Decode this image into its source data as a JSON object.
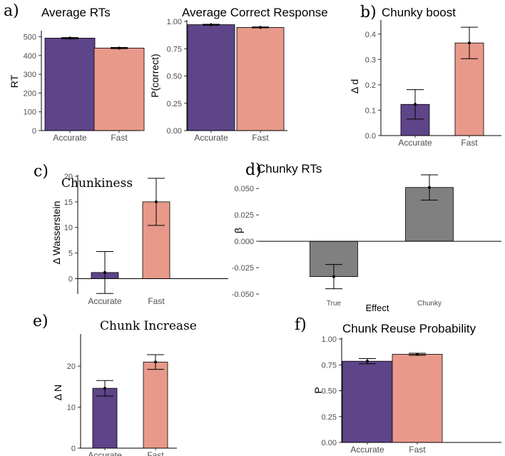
{
  "colors": {
    "accurate": "#5e4489",
    "fast": "#e8998a",
    "grey": "#808080",
    "axis": "#000000",
    "err": "#000000"
  },
  "chart_data": [
    {
      "id": "a1",
      "type": "bar",
      "panel_label": "a)",
      "title": "Average RTs",
      "categories": [
        "Accurate",
        "Fast"
      ],
      "values": [
        493,
        440
      ],
      "errors": [
        3,
        3
      ],
      "ylabel": "RT",
      "xlabel": "",
      "ylim": [
        0,
        525
      ],
      "yticks": [
        0,
        100,
        200,
        300,
        400,
        500
      ],
      "ytick_labels": [
        "0",
        "100",
        "200",
        "300",
        "400",
        "500"
      ],
      "colors": [
        "#5e4489",
        "#e8998a"
      ]
    },
    {
      "id": "a2",
      "type": "bar",
      "panel_label": "",
      "title": "Average Correct Response",
      "categories": [
        "Accurate",
        "Fast"
      ],
      "values": [
        0.97,
        0.945
      ],
      "errors": [
        0.004,
        0.004
      ],
      "ylabel": "P(correct)",
      "xlabel": "",
      "ylim": [
        0,
        1.0
      ],
      "yticks": [
        0,
        0.25,
        0.5,
        0.75,
        1.0
      ],
      "ytick_labels": [
        "0.00",
        "0.25",
        "0.50",
        "0.75",
        "1.00"
      ],
      "colors": [
        "#5e4489",
        "#e8998a"
      ]
    },
    {
      "id": "b",
      "type": "bar",
      "panel_label": "b)",
      "title": "Chunky boost",
      "categories": [
        "Accurate",
        "Fast"
      ],
      "values": [
        0.123,
        0.365
      ],
      "errors": [
        0.058,
        0.062
      ],
      "ylabel": "Δ d",
      "xlabel": "",
      "ylim": [
        0,
        0.45
      ],
      "yticks": [
        0,
        0.1,
        0.2,
        0.3,
        0.4
      ],
      "ytick_labels": [
        "0.0",
        "0.1",
        "0.2",
        "0.3",
        "0.4"
      ],
      "colors": [
        "#5e4489",
        "#e8998a"
      ]
    },
    {
      "id": "c",
      "type": "bar",
      "panel_label": "c)",
      "title": "Chunkiness",
      "categories": [
        "Accurate",
        "Fast"
      ],
      "values": [
        1.2,
        15.0
      ],
      "errors": [
        4.1,
        4.6
      ],
      "ylabel": "Δ  Wasserstein",
      "xlabel": "",
      "ylim": [
        -3,
        20
      ],
      "yticks": [
        0,
        5,
        10,
        15,
        20
      ],
      "ytick_labels": [
        "0",
        "5",
        "10",
        "15",
        "20"
      ],
      "colors": [
        "#5e4489",
        "#e8998a"
      ]
    },
    {
      "id": "d",
      "type": "bar",
      "panel_label": "d)",
      "title": "Chunky RTs",
      "categories": [
        "True",
        "Chunky"
      ],
      "values": [
        -0.0335,
        0.051
      ],
      "errors": [
        0.0115,
        0.012
      ],
      "ylabel": "β",
      "xlabel": "Effect",
      "ylim": [
        -0.05,
        0.065
      ],
      "yticks": [
        -0.05,
        -0.025,
        0,
        0.025,
        0.05
      ],
      "ytick_labels": [
        "-0.050",
        "-0.025",
        "0.000",
        "0.025",
        "0.050"
      ],
      "colors": [
        "#808080",
        "#808080"
      ]
    },
    {
      "id": "e",
      "type": "bar",
      "panel_label": "e)",
      "title": "Chunk Increase",
      "categories": [
        "Accurate",
        "Fast"
      ],
      "values": [
        14.6,
        21.0
      ],
      "errors": [
        1.9,
        1.8
      ],
      "ylabel": "Δ  N",
      "xlabel": "",
      "ylim": [
        0,
        27.5
      ],
      "yticks": [
        0,
        10,
        20
      ],
      "ytick_labels": [
        "0",
        "10",
        "20"
      ],
      "colors": [
        "#5e4489",
        "#e8998a"
      ]
    },
    {
      "id": "f",
      "type": "bar",
      "panel_label": "f)",
      "title": "Chunk Reuse Probability",
      "categories": [
        "Accurate",
        "Fast"
      ],
      "values": [
        0.785,
        0.852
      ],
      "errors": [
        0.025,
        0.01
      ],
      "ylabel": "P",
      "xlabel": "",
      "ylim": [
        0,
        1.0
      ],
      "yticks": [
        0,
        0.25,
        0.5,
        0.75,
        1.0
      ],
      "ytick_labels": [
        "0.00",
        "0.25",
        "0.50",
        "0.75",
        "1.00"
      ],
      "colors": [
        "#5e4489",
        "#e8998a"
      ]
    }
  ]
}
